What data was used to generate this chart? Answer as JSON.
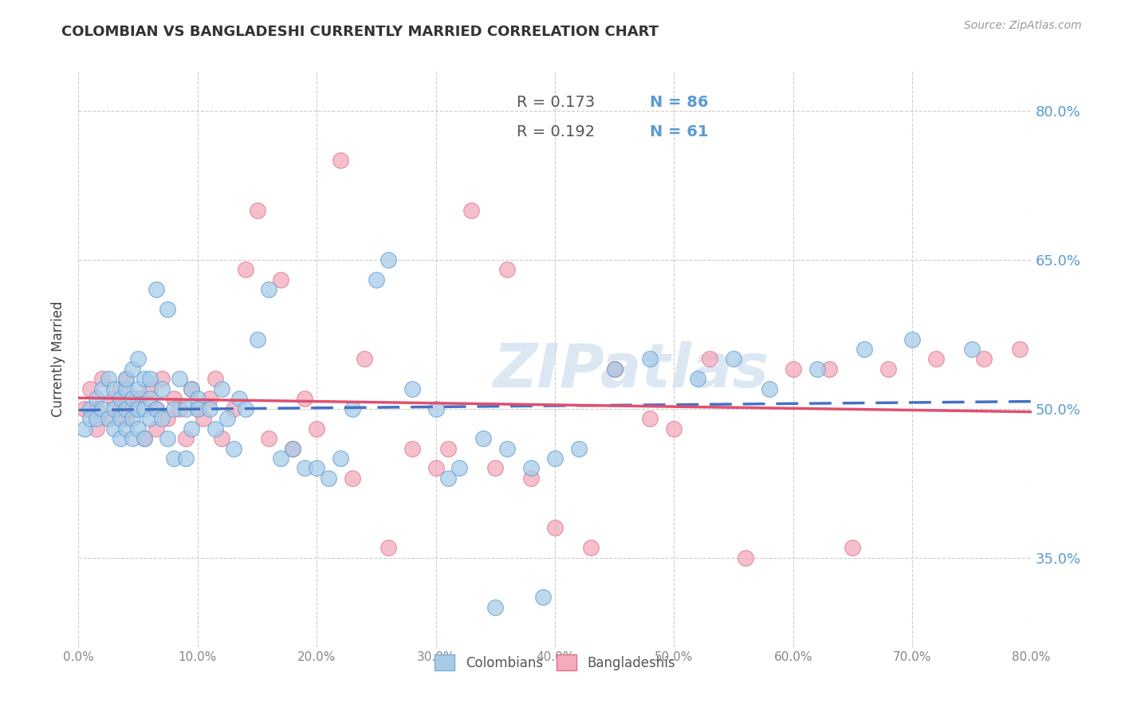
{
  "title": "COLOMBIAN VS BANGLADESHI CURRENTLY MARRIED CORRELATION CHART",
  "source": "Source: ZipAtlas.com",
  "ylabel": "Currently Married",
  "watermark": "ZIPatlas",
  "col_R": 0.173,
  "bang_R": 0.192,
  "col_N": 86,
  "bang_N": 61,
  "col_scatter_color": "#a8cce8",
  "col_edge_color": "#5b9bd5",
  "bang_scatter_color": "#f4aabb",
  "bang_edge_color": "#e0708a",
  "trendline_col_color": "#4472c4",
  "trendline_bang_color": "#e05070",
  "grid_color": "#cccccc",
  "xlim": [
    0.0,
    0.8
  ],
  "ylim": [
    0.26,
    0.84
  ],
  "xticks": [
    0.0,
    0.1,
    0.2,
    0.3,
    0.4,
    0.5,
    0.6,
    0.7,
    0.8
  ],
  "yticks": [
    0.35,
    0.5,
    0.65,
    0.8
  ],
  "colombians_x": [
    0.005,
    0.01,
    0.01,
    0.015,
    0.015,
    0.02,
    0.02,
    0.025,
    0.025,
    0.03,
    0.03,
    0.03,
    0.035,
    0.035,
    0.035,
    0.04,
    0.04,
    0.04,
    0.04,
    0.045,
    0.045,
    0.045,
    0.045,
    0.05,
    0.05,
    0.05,
    0.05,
    0.055,
    0.055,
    0.055,
    0.06,
    0.06,
    0.06,
    0.065,
    0.065,
    0.07,
    0.07,
    0.075,
    0.075,
    0.08,
    0.08,
    0.085,
    0.09,
    0.09,
    0.095,
    0.095,
    0.1,
    0.1,
    0.11,
    0.115,
    0.12,
    0.125,
    0.13,
    0.135,
    0.14,
    0.15,
    0.16,
    0.17,
    0.18,
    0.19,
    0.2,
    0.21,
    0.22,
    0.23,
    0.25,
    0.26,
    0.28,
    0.3,
    0.31,
    0.32,
    0.34,
    0.35,
    0.36,
    0.38,
    0.39,
    0.4,
    0.42,
    0.45,
    0.48,
    0.52,
    0.55,
    0.58,
    0.62,
    0.66,
    0.7,
    0.75
  ],
  "colombians_y": [
    0.48,
    0.5,
    0.49,
    0.49,
    0.51,
    0.5,
    0.52,
    0.49,
    0.53,
    0.5,
    0.48,
    0.52,
    0.51,
    0.49,
    0.47,
    0.52,
    0.5,
    0.48,
    0.53,
    0.51,
    0.49,
    0.54,
    0.47,
    0.5,
    0.52,
    0.48,
    0.55,
    0.5,
    0.53,
    0.47,
    0.51,
    0.49,
    0.53,
    0.5,
    0.62,
    0.49,
    0.52,
    0.6,
    0.47,
    0.5,
    0.45,
    0.53,
    0.5,
    0.45,
    0.52,
    0.48,
    0.51,
    0.5,
    0.5,
    0.48,
    0.52,
    0.49,
    0.46,
    0.51,
    0.5,
    0.57,
    0.62,
    0.45,
    0.46,
    0.44,
    0.44,
    0.43,
    0.45,
    0.5,
    0.63,
    0.65,
    0.52,
    0.5,
    0.43,
    0.44,
    0.47,
    0.3,
    0.46,
    0.44,
    0.31,
    0.45,
    0.46,
    0.54,
    0.55,
    0.53,
    0.55,
    0.52,
    0.54,
    0.56,
    0.57,
    0.56
  ],
  "bangladeshis_x": [
    0.005,
    0.01,
    0.015,
    0.015,
    0.02,
    0.025,
    0.03,
    0.035,
    0.035,
    0.04,
    0.04,
    0.045,
    0.05,
    0.055,
    0.06,
    0.065,
    0.065,
    0.07,
    0.075,
    0.08,
    0.085,
    0.09,
    0.095,
    0.1,
    0.105,
    0.11,
    0.115,
    0.12,
    0.13,
    0.14,
    0.15,
    0.16,
    0.17,
    0.18,
    0.19,
    0.2,
    0.22,
    0.23,
    0.24,
    0.26,
    0.28,
    0.3,
    0.31,
    0.33,
    0.35,
    0.36,
    0.38,
    0.4,
    0.43,
    0.45,
    0.48,
    0.5,
    0.53,
    0.56,
    0.6,
    0.63,
    0.65,
    0.68,
    0.72,
    0.76,
    0.79
  ],
  "bangladeshis_y": [
    0.5,
    0.52,
    0.5,
    0.48,
    0.53,
    0.49,
    0.51,
    0.5,
    0.52,
    0.49,
    0.53,
    0.5,
    0.51,
    0.47,
    0.52,
    0.5,
    0.48,
    0.53,
    0.49,
    0.51,
    0.5,
    0.47,
    0.52,
    0.5,
    0.49,
    0.51,
    0.53,
    0.47,
    0.5,
    0.64,
    0.7,
    0.47,
    0.63,
    0.46,
    0.51,
    0.48,
    0.75,
    0.43,
    0.55,
    0.36,
    0.46,
    0.44,
    0.46,
    0.7,
    0.44,
    0.64,
    0.43,
    0.38,
    0.36,
    0.54,
    0.49,
    0.48,
    0.55,
    0.35,
    0.54,
    0.54,
    0.36,
    0.54,
    0.55,
    0.55,
    0.56
  ]
}
